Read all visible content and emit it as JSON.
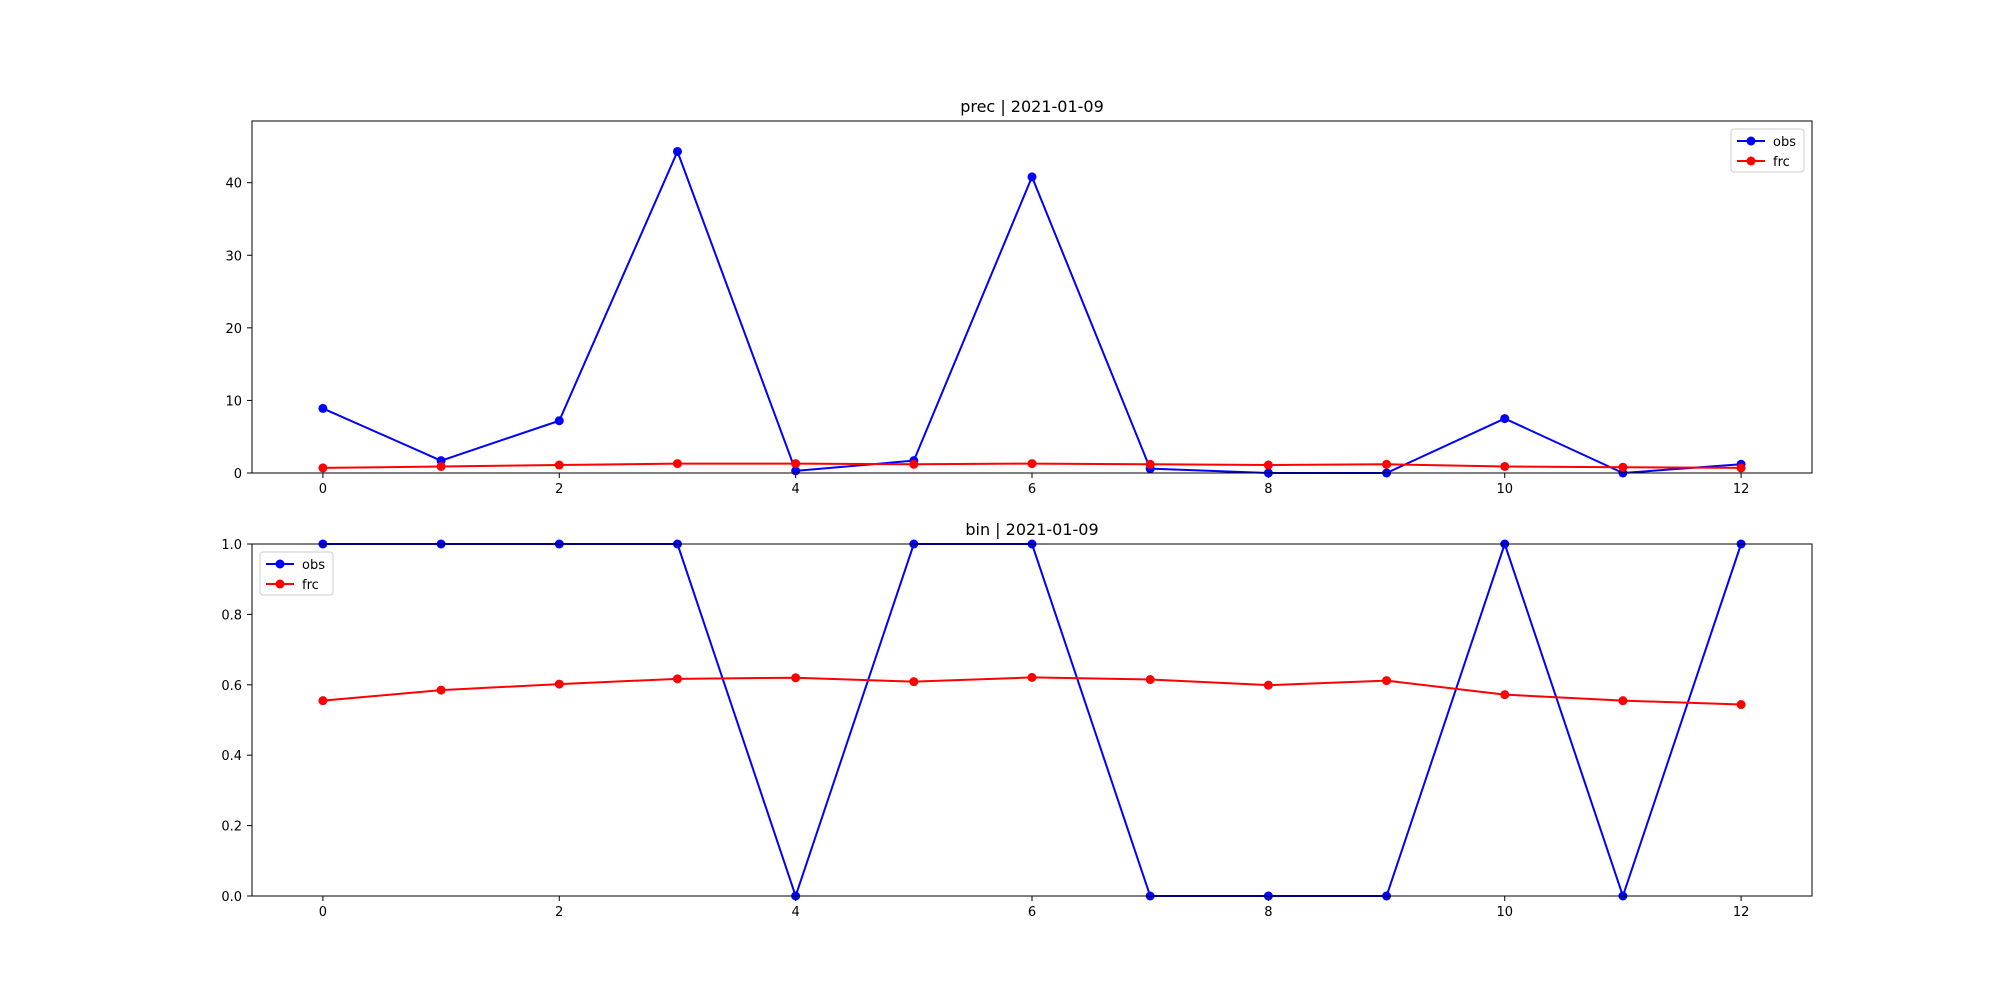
{
  "chart_data": [
    {
      "type": "line",
      "title": "prec | 2021-01-09",
      "xlabel": "",
      "ylabel": "",
      "xlim": [
        -0.6,
        12.6
      ],
      "ylim": [
        0,
        48.5
      ],
      "xticks": [
        0,
        2,
        4,
        6,
        8,
        10,
        12
      ],
      "yticks": [
        0,
        10,
        20,
        30,
        40
      ],
      "grid": false,
      "legend": "top-right",
      "x": [
        0,
        1,
        2,
        3,
        4,
        5,
        6,
        7,
        8,
        9,
        10,
        11,
        12
      ],
      "series": [
        {
          "name": "obs",
          "color": "#0000ff",
          "marker": "circle",
          "values": [
            8.9,
            1.7,
            7.2,
            44.3,
            0.3,
            1.7,
            40.8,
            0.6,
            0.0,
            0.0,
            7.5,
            0.0,
            1.2
          ]
        },
        {
          "name": "frc",
          "color": "#ff0000",
          "marker": "circle",
          "values": [
            0.7,
            0.9,
            1.1,
            1.3,
            1.3,
            1.2,
            1.3,
            1.2,
            1.1,
            1.2,
            0.9,
            0.8,
            0.7
          ]
        }
      ]
    },
    {
      "type": "line",
      "title": "bin | 2021-01-09",
      "xlabel": "",
      "ylabel": "",
      "xlim": [
        -0.6,
        12.6
      ],
      "ylim": [
        0,
        1
      ],
      "xticks": [
        0,
        2,
        4,
        6,
        8,
        10,
        12
      ],
      "yticks": [
        0.0,
        0.2,
        0.4,
        0.6,
        0.8,
        1.0
      ],
      "grid": false,
      "legend": "top-left",
      "x": [
        0,
        1,
        2,
        3,
        4,
        5,
        6,
        7,
        8,
        9,
        10,
        11,
        12
      ],
      "series": [
        {
          "name": "obs",
          "color": "#0000ff",
          "marker": "circle",
          "values": [
            1,
            1,
            1,
            1,
            0,
            1,
            1,
            0,
            0,
            0,
            1,
            0,
            1
          ]
        },
        {
          "name": "frc",
          "color": "#ff0000",
          "marker": "circle",
          "values": [
            0.555,
            0.585,
            0.602,
            0.617,
            0.62,
            0.609,
            0.621,
            0.615,
            0.599,
            0.612,
            0.572,
            0.555,
            0.544
          ]
        }
      ]
    }
  ]
}
